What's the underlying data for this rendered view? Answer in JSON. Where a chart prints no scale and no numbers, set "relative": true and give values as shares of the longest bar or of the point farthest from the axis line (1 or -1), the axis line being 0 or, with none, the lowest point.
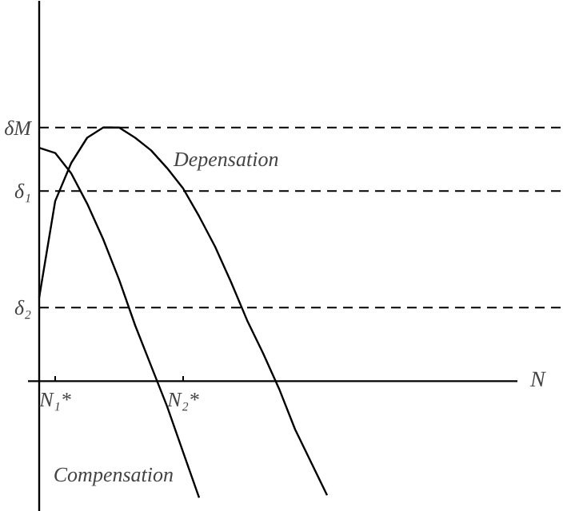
{
  "chart_data": {
    "type": "line",
    "xlabel": "N",
    "relative": true,
    "categories": [
      null,
      "N₁*",
      null,
      null,
      null,
      null,
      null,
      null,
      null,
      "N₂*",
      null,
      null,
      null,
      null,
      null,
      null,
      null,
      null,
      null,
      null,
      null,
      null,
      null,
      null,
      null,
      null,
      null,
      null,
      null,
      null
    ],
    "ref_lines": [
      {
        "axis": "y",
        "value": 1,
        "label": "δM",
        "line_style": "dashed",
        "color": "#000000"
      },
      {
        "axis": "y",
        "value": 0.75,
        "label": "δ₁",
        "line_style": "dashed",
        "color": "#000000"
      },
      {
        "axis": "y",
        "value": 0.29,
        "label": "δ₂",
        "line_style": "dashed",
        "color": "#000000"
      }
    ],
    "series": [
      {
        "name": "Compensation",
        "color": "#000000",
        "values": [
          0.92,
          0.9,
          0.82,
          0.7,
          0.56,
          0.4,
          0.22,
          0.06,
          -0.1,
          -0.28,
          -0.46,
          null,
          null,
          null,
          null,
          null,
          null,
          null,
          null,
          null,
          null,
          null,
          null,
          null,
          null,
          null,
          null,
          null,
          null,
          null
        ]
      },
      {
        "name": "Depensation",
        "color": "#000000",
        "values": [
          0.33,
          0.71,
          0.86,
          0.96,
          1,
          1,
          0.96,
          0.91,
          0.84,
          0.76,
          0.65,
          0.53,
          0.39,
          0.24,
          0.11,
          -0.03,
          -0.19,
          -0.32,
          -0.45,
          null,
          null,
          null,
          null,
          null,
          null,
          null,
          null,
          null,
          null,
          null
        ]
      }
    ]
  }
}
